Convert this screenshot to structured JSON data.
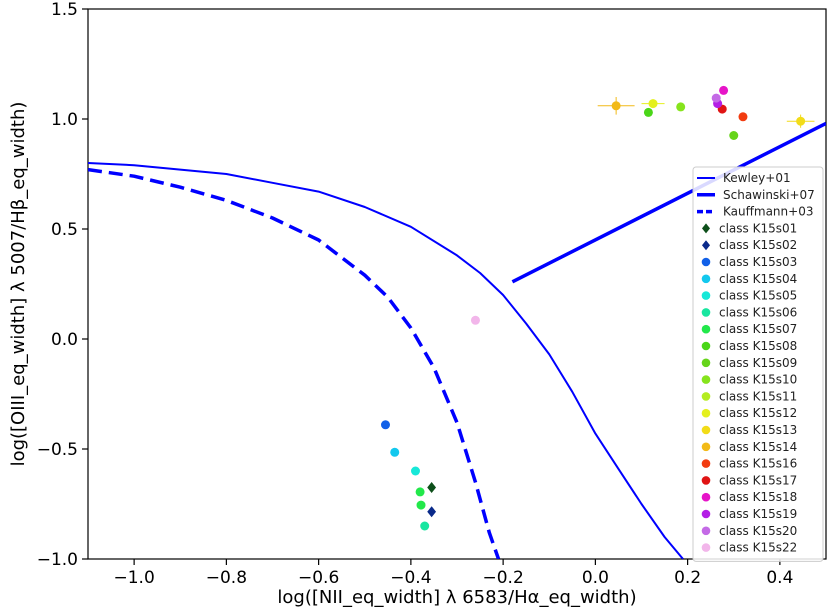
{
  "chart_data": {
    "type": "scatter",
    "title": "",
    "xlabel": "log([NII_eq_width] λ 6583/Hα_eq_width)",
    "ylabel": "log([OIII_eq_width] λ 5007/Hβ_eq_width)",
    "xlim": [
      -1.1,
      0.5
    ],
    "ylim": [
      -1.0,
      1.5
    ],
    "x_ticks": [
      -1.0,
      -0.8,
      -0.6,
      -0.4,
      -0.2,
      0.0,
      0.2,
      0.4
    ],
    "x_tick_labels": [
      "−1.0",
      "−0.8",
      "−0.6",
      "−0.4",
      "−0.2",
      "0.0",
      "0.2",
      "0.4"
    ],
    "y_ticks": [
      -1.0,
      -0.5,
      0.0,
      0.5,
      1.0,
      1.5
    ],
    "y_tick_labels": [
      "−1.0",
      "−0.5",
      "0.0",
      "0.5",
      "1.0",
      "1.5"
    ],
    "grid": false,
    "legend_position": "right",
    "lines": [
      {
        "name": "Kewley+01",
        "style": "solid",
        "width": 2,
        "color": "#0000ff",
        "x": [
          -1.1,
          -1.0,
          -0.9,
          -0.8,
          -0.7,
          -0.6,
          -0.5,
          -0.4,
          -0.3,
          -0.25,
          -0.2,
          -0.15,
          -0.1,
          -0.05,
          0.0,
          0.05,
          0.1,
          0.15,
          0.19
        ],
        "y": [
          0.8,
          0.79,
          0.77,
          0.75,
          0.71,
          0.67,
          0.6,
          0.51,
          0.38,
          0.3,
          0.2,
          0.07,
          -0.07,
          -0.24,
          -0.43,
          -0.59,
          -0.75,
          -0.9,
          -1.0
        ]
      },
      {
        "name": "Schawinski+07",
        "style": "solid",
        "width": 3.5,
        "color": "#0000ff",
        "x": [
          -0.18,
          0.5
        ],
        "y": [
          0.26,
          0.98
        ]
      },
      {
        "name": "Kauffmann+03",
        "style": "dashed",
        "width": 3.5,
        "color": "#0000ff",
        "x": [
          -1.1,
          -1.0,
          -0.9,
          -0.8,
          -0.7,
          -0.6,
          -0.5,
          -0.45,
          -0.4,
          -0.35,
          -0.3,
          -0.26,
          -0.23,
          -0.21
        ],
        "y": [
          0.77,
          0.74,
          0.69,
          0.63,
          0.55,
          0.45,
          0.29,
          0.19,
          0.05,
          -0.13,
          -0.38,
          -0.65,
          -0.88,
          -1.0
        ]
      }
    ],
    "series": [
      {
        "name": "class K15s01",
        "color": "#0d4f1a",
        "marker": "diamond",
        "points": [
          {
            "x": -0.355,
            "y": -0.675
          }
        ]
      },
      {
        "name": "class K15s02",
        "color": "#0a2a8a",
        "marker": "diamond",
        "points": [
          {
            "x": -0.355,
            "y": -0.785
          }
        ]
      },
      {
        "name": "class K15s03",
        "color": "#1160e8",
        "marker": "circle",
        "points": [
          {
            "x": -0.455,
            "y": -0.39
          }
        ]
      },
      {
        "name": "class K15s04",
        "color": "#13c8ee",
        "marker": "circle",
        "points": [
          {
            "x": -0.435,
            "y": -0.515
          }
        ]
      },
      {
        "name": "class K15s05",
        "color": "#17e8d8",
        "marker": "circle",
        "points": [
          {
            "x": -0.39,
            "y": -0.6
          }
        ]
      },
      {
        "name": "class K15s06",
        "color": "#18e6a0",
        "marker": "circle",
        "points": [
          {
            "x": -0.37,
            "y": -0.85
          }
        ]
      },
      {
        "name": "class K15s07",
        "color": "#22e84a",
        "marker": "circle",
        "points": [
          {
            "x": -0.38,
            "y": -0.695
          },
          {
            "x": -0.378,
            "y": -0.755
          }
        ]
      },
      {
        "name": "class K15s08",
        "color": "#4ad618",
        "marker": "circle",
        "points": [
          {
            "x": 0.115,
            "y": 1.03
          }
        ]
      },
      {
        "name": "class K15s09",
        "color": "#66d41a",
        "marker": "circle",
        "points": [
          {
            "x": 0.3,
            "y": 0.925
          }
        ]
      },
      {
        "name": "class K15s10",
        "color": "#86e41c",
        "marker": "circle",
        "points": [
          {
            "x": 0.185,
            "y": 1.055
          }
        ]
      },
      {
        "name": "class K15s11",
        "color": "#b4ec20",
        "marker": "circle",
        "points": []
      },
      {
        "name": "class K15s12",
        "color": "#e4f01e",
        "marker": "circle",
        "points": [
          {
            "x": 0.125,
            "y": 1.07,
            "xerr": 0.025,
            "yerr": 0.02
          }
        ]
      },
      {
        "name": "class K15s13",
        "color": "#f2dc18",
        "marker": "circle",
        "points": [
          {
            "x": 0.445,
            "y": 0.99,
            "xerr": 0.03,
            "yerr": 0.03
          }
        ]
      },
      {
        "name": "class K15s14",
        "color": "#f2ba18",
        "marker": "circle",
        "points": [
          {
            "x": 0.045,
            "y": 1.06,
            "xerr": 0.04,
            "yerr": 0.04
          }
        ]
      },
      {
        "name": "class K15s16",
        "color": "#f23c10",
        "marker": "circle",
        "points": [
          {
            "x": 0.32,
            "y": 1.01
          }
        ]
      },
      {
        "name": "class K15s17",
        "color": "#e01414",
        "marker": "circle",
        "points": [
          {
            "x": 0.275,
            "y": 1.045
          }
        ]
      },
      {
        "name": "class K15s18",
        "color": "#e614c8",
        "marker": "circle",
        "points": [
          {
            "x": 0.278,
            "y": 1.13
          }
        ]
      },
      {
        "name": "class K15s19",
        "color": "#b41ee6",
        "marker": "circle",
        "points": [
          {
            "x": 0.265,
            "y": 1.07
          }
        ]
      },
      {
        "name": "class K15s20",
        "color": "#c46ae6",
        "marker": "circle",
        "points": [
          {
            "x": 0.262,
            "y": 1.095
          }
        ]
      },
      {
        "name": "class K15s22",
        "color": "#f2b6ea",
        "marker": "circle",
        "points": [
          {
            "x": -0.26,
            "y": 0.085
          }
        ]
      }
    ]
  }
}
